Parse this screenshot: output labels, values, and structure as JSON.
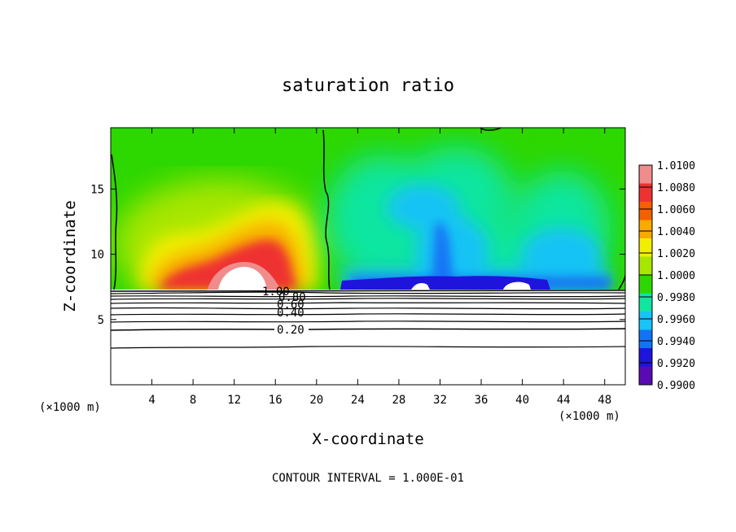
{
  "chart_data": {
    "type": "heatmap",
    "title": "saturation ratio",
    "xlabel": "X-coordinate",
    "ylabel": "Z-coordinate",
    "x_unit": "(×1000 m)",
    "y_unit": "(×1000 m)",
    "xlim": [
      0,
      50
    ],
    "ylim": [
      0,
      19.7
    ],
    "x_ticks": [
      "4",
      "8",
      "12",
      "16",
      "20",
      "24",
      "28",
      "32",
      "36",
      "40",
      "44",
      "48"
    ],
    "y_ticks": [
      "5",
      "10",
      "15"
    ],
    "footer": "CONTOUR INTERVAL = 1.000E-01",
    "colorbar": {
      "labels": [
        "1.0100",
        "1.0080",
        "1.0060",
        "1.0040",
        "1.0020",
        "1.0000",
        "0.9980",
        "0.9960",
        "0.9940",
        "0.9920",
        "0.9900"
      ],
      "colors": [
        "#f08c8c",
        "#ee3232",
        "#f55f00",
        "#f8aa00",
        "#f2ee00",
        "#a8e600",
        "#2dd700",
        "#10e6a0",
        "#19c3f5",
        "#1473f5",
        "#1e14dc",
        "#5a0ab4"
      ]
    },
    "contour_labels": [
      "1.00",
      "0.80",
      "0.60",
      "0.40",
      "0.20"
    ],
    "color_regions": [
      {
        "x": 6,
        "z": 18,
        "value": 1.0005
      },
      {
        "x": 11,
        "z": 13,
        "value": 1.003
      },
      {
        "x": 13,
        "z": 10.5,
        "value": 1.008
      },
      {
        "x": 12.5,
        "z": 9.6,
        "value": 1.01
      },
      {
        "x": 32,
        "z": 14,
        "value": 0.997
      },
      {
        "x": 32,
        "z": 9,
        "value": 0.993
      },
      {
        "x": 42,
        "z": 8,
        "value": 0.992
      },
      {
        "x": 37,
        "z": 17,
        "value": 0.9995
      }
    ]
  }
}
